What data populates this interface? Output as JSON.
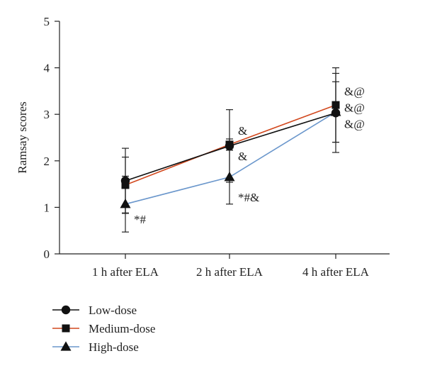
{
  "chart_data": {
    "type": "line",
    "categories": [
      "1 h after ELA",
      "2 h after ELA",
      "4 h after ELA"
    ],
    "ylabel": "Ramsay scores",
    "xlabel": "",
    "ylim": [
      0,
      5
    ],
    "yticks": [
      0,
      1,
      2,
      3,
      4,
      5
    ],
    "legend_position": "bottom-left",
    "series": [
      {
        "name": "Low-dose",
        "marker": "circle",
        "color": "#111111",
        "values": [
          1.57,
          2.32,
          3.03
        ],
        "errors": [
          0.7,
          0.78,
          0.85
        ]
      },
      {
        "name": "Medium-dose",
        "marker": "square",
        "color": "#d2491f",
        "values": [
          1.48,
          2.35,
          3.2
        ],
        "errors": [
          0.6,
          0.12,
          0.8
        ]
      },
      {
        "name": "High-dose",
        "marker": "triangle",
        "color": "#6b97cc",
        "values": [
          1.07,
          1.65,
          3.05
        ],
        "errors": [
          0.6,
          0.58,
          0.65
        ]
      }
    ],
    "annotations": [
      {
        "text": "*#",
        "category": 0,
        "y": 0.75
      },
      {
        "text": "&",
        "category": 1,
        "y": 2.65
      },
      {
        "text": "&",
        "category": 1,
        "y": 2.1
      },
      {
        "text": "*#&",
        "category": 1,
        "y": 1.22
      },
      {
        "text": "&@",
        "category": 2,
        "y": 3.5
      },
      {
        "text": "&@",
        "category": 2,
        "y": 3.15
      },
      {
        "text": "&@",
        "category": 2,
        "y": 2.8
      }
    ]
  }
}
